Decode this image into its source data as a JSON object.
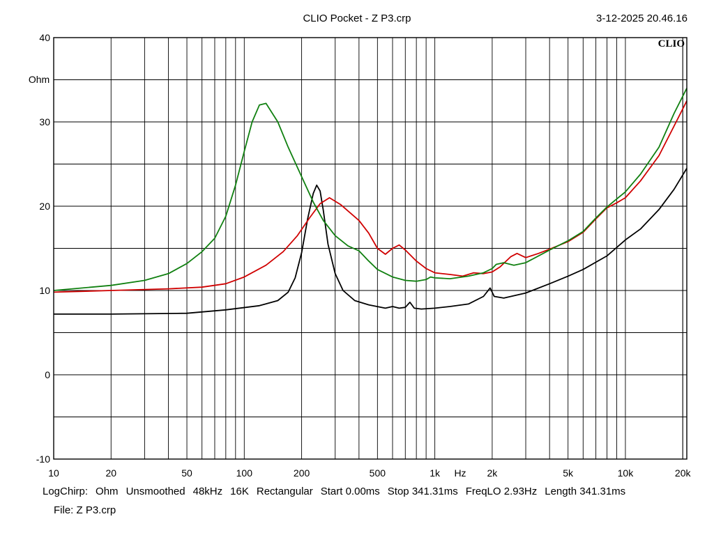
{
  "header": {
    "title": "CLIO Pocket - Z  P3.crp",
    "timestamp": "3-12-2025 20.46.16"
  },
  "logo": "CLIO",
  "footer": {
    "items": [
      "LogChirp:",
      "Ohm",
      "Unsmoothed",
      "48kHz",
      "16K",
      "Rectangular",
      "Start 0.00ms",
      "Stop 341.31ms",
      "FreqLO 2.93Hz",
      "Length 341.31ms"
    ],
    "file": "File: Z  P3.crp"
  },
  "chart_data": {
    "type": "line",
    "title": "",
    "xlabel": "Hz",
    "ylabel": "Ohm",
    "xscale": "log",
    "xlim": [
      10,
      21000
    ],
    "ylim": [
      -10,
      40
    ],
    "y_ticks": [
      -10,
      0,
      10,
      20,
      30,
      40
    ],
    "y_tick_labels": [
      "-10",
      "0",
      "10",
      "20",
      "30",
      "40"
    ],
    "x_ticks": [
      10,
      20,
      50,
      100,
      200,
      500,
      1000,
      2000,
      5000,
      10000,
      20000
    ],
    "x_tick_labels": [
      "10",
      "20",
      "50",
      "100",
      "200",
      "500",
      "1k",
      "2k",
      "5k",
      "10k",
      "20k"
    ],
    "grid": true,
    "series": [
      {
        "color": "#000000",
        "points": [
          [
            10,
            7.2
          ],
          [
            20,
            7.2
          ],
          [
            50,
            7.3
          ],
          [
            80,
            7.7
          ],
          [
            120,
            8.2
          ],
          [
            150,
            8.8
          ],
          [
            170,
            9.8
          ],
          [
            185,
            11.5
          ],
          [
            200,
            14.5
          ],
          [
            215,
            18.5
          ],
          [
            230,
            21.5
          ],
          [
            240,
            22.5
          ],
          [
            250,
            21.8
          ],
          [
            260,
            19.5
          ],
          [
            275,
            15.5
          ],
          [
            300,
            12.0
          ],
          [
            330,
            10.0
          ],
          [
            380,
            8.8
          ],
          [
            450,
            8.3
          ],
          [
            550,
            7.9
          ],
          [
            600,
            8.1
          ],
          [
            650,
            7.9
          ],
          [
            700,
            8.0
          ],
          [
            740,
            8.6
          ],
          [
            780,
            7.9
          ],
          [
            850,
            7.8
          ],
          [
            1000,
            7.9
          ],
          [
            1200,
            8.1
          ],
          [
            1500,
            8.4
          ],
          [
            1800,
            9.3
          ],
          [
            1950,
            10.3
          ],
          [
            2050,
            9.3
          ],
          [
            2300,
            9.1
          ],
          [
            3000,
            9.7
          ],
          [
            4000,
            10.8
          ],
          [
            5000,
            11.7
          ],
          [
            6000,
            12.5
          ],
          [
            8000,
            14.1
          ],
          [
            10000,
            16.0
          ],
          [
            12000,
            17.3
          ],
          [
            15000,
            19.6
          ],
          [
            18000,
            22.0
          ],
          [
            21000,
            24.5
          ]
        ]
      },
      {
        "color": "#d00000",
        "points": [
          [
            10,
            9.8
          ],
          [
            20,
            10.0
          ],
          [
            40,
            10.2
          ],
          [
            60,
            10.4
          ],
          [
            80,
            10.8
          ],
          [
            100,
            11.6
          ],
          [
            130,
            13.0
          ],
          [
            160,
            14.6
          ],
          [
            190,
            16.5
          ],
          [
            220,
            18.6
          ],
          [
            250,
            20.3
          ],
          [
            280,
            21.0
          ],
          [
            320,
            20.2
          ],
          [
            400,
            18.3
          ],
          [
            450,
            16.8
          ],
          [
            500,
            15.0
          ],
          [
            550,
            14.3
          ],
          [
            600,
            15.0
          ],
          [
            650,
            15.4
          ],
          [
            700,
            14.8
          ],
          [
            800,
            13.5
          ],
          [
            900,
            12.6
          ],
          [
            1000,
            12.1
          ],
          [
            1200,
            11.9
          ],
          [
            1400,
            11.7
          ],
          [
            1600,
            12.1
          ],
          [
            1800,
            12.0
          ],
          [
            2000,
            12.2
          ],
          [
            2200,
            12.8
          ],
          [
            2500,
            14.0
          ],
          [
            2700,
            14.4
          ],
          [
            3000,
            13.9
          ],
          [
            3500,
            14.4
          ],
          [
            4000,
            14.9
          ],
          [
            5000,
            15.8
          ],
          [
            6000,
            16.9
          ],
          [
            7000,
            18.5
          ],
          [
            8000,
            19.8
          ],
          [
            9000,
            20.4
          ],
          [
            10000,
            21.0
          ],
          [
            12000,
            23.0
          ],
          [
            15000,
            26.0
          ],
          [
            18000,
            29.5
          ],
          [
            21000,
            32.5
          ]
        ]
      },
      {
        "color": "#108010",
        "points": [
          [
            10,
            10.0
          ],
          [
            20,
            10.6
          ],
          [
            30,
            11.2
          ],
          [
            40,
            12.0
          ],
          [
            50,
            13.2
          ],
          [
            60,
            14.6
          ],
          [
            70,
            16.2
          ],
          [
            80,
            18.8
          ],
          [
            90,
            22.5
          ],
          [
            100,
            26.5
          ],
          [
            110,
            30.0
          ],
          [
            120,
            32.0
          ],
          [
            130,
            32.2
          ],
          [
            150,
            30.0
          ],
          [
            170,
            27.0
          ],
          [
            200,
            23.5
          ],
          [
            230,
            20.5
          ],
          [
            260,
            18.3
          ],
          [
            300,
            16.5
          ],
          [
            350,
            15.3
          ],
          [
            400,
            14.7
          ],
          [
            450,
            13.5
          ],
          [
            500,
            12.5
          ],
          [
            600,
            11.6
          ],
          [
            700,
            11.2
          ],
          [
            800,
            11.1
          ],
          [
            900,
            11.3
          ],
          [
            950,
            11.6
          ],
          [
            1000,
            11.5
          ],
          [
            1200,
            11.4
          ],
          [
            1500,
            11.7
          ],
          [
            1800,
            12.1
          ],
          [
            2000,
            12.6
          ],
          [
            2100,
            13.1
          ],
          [
            2300,
            13.3
          ],
          [
            2600,
            13.0
          ],
          [
            3000,
            13.3
          ],
          [
            4000,
            14.8
          ],
          [
            5000,
            15.9
          ],
          [
            6000,
            17.0
          ],
          [
            7000,
            18.6
          ],
          [
            8000,
            19.9
          ],
          [
            10000,
            21.7
          ],
          [
            12000,
            23.8
          ],
          [
            15000,
            27.0
          ],
          [
            18000,
            31.0
          ],
          [
            21000,
            34.0
          ]
        ]
      }
    ]
  }
}
